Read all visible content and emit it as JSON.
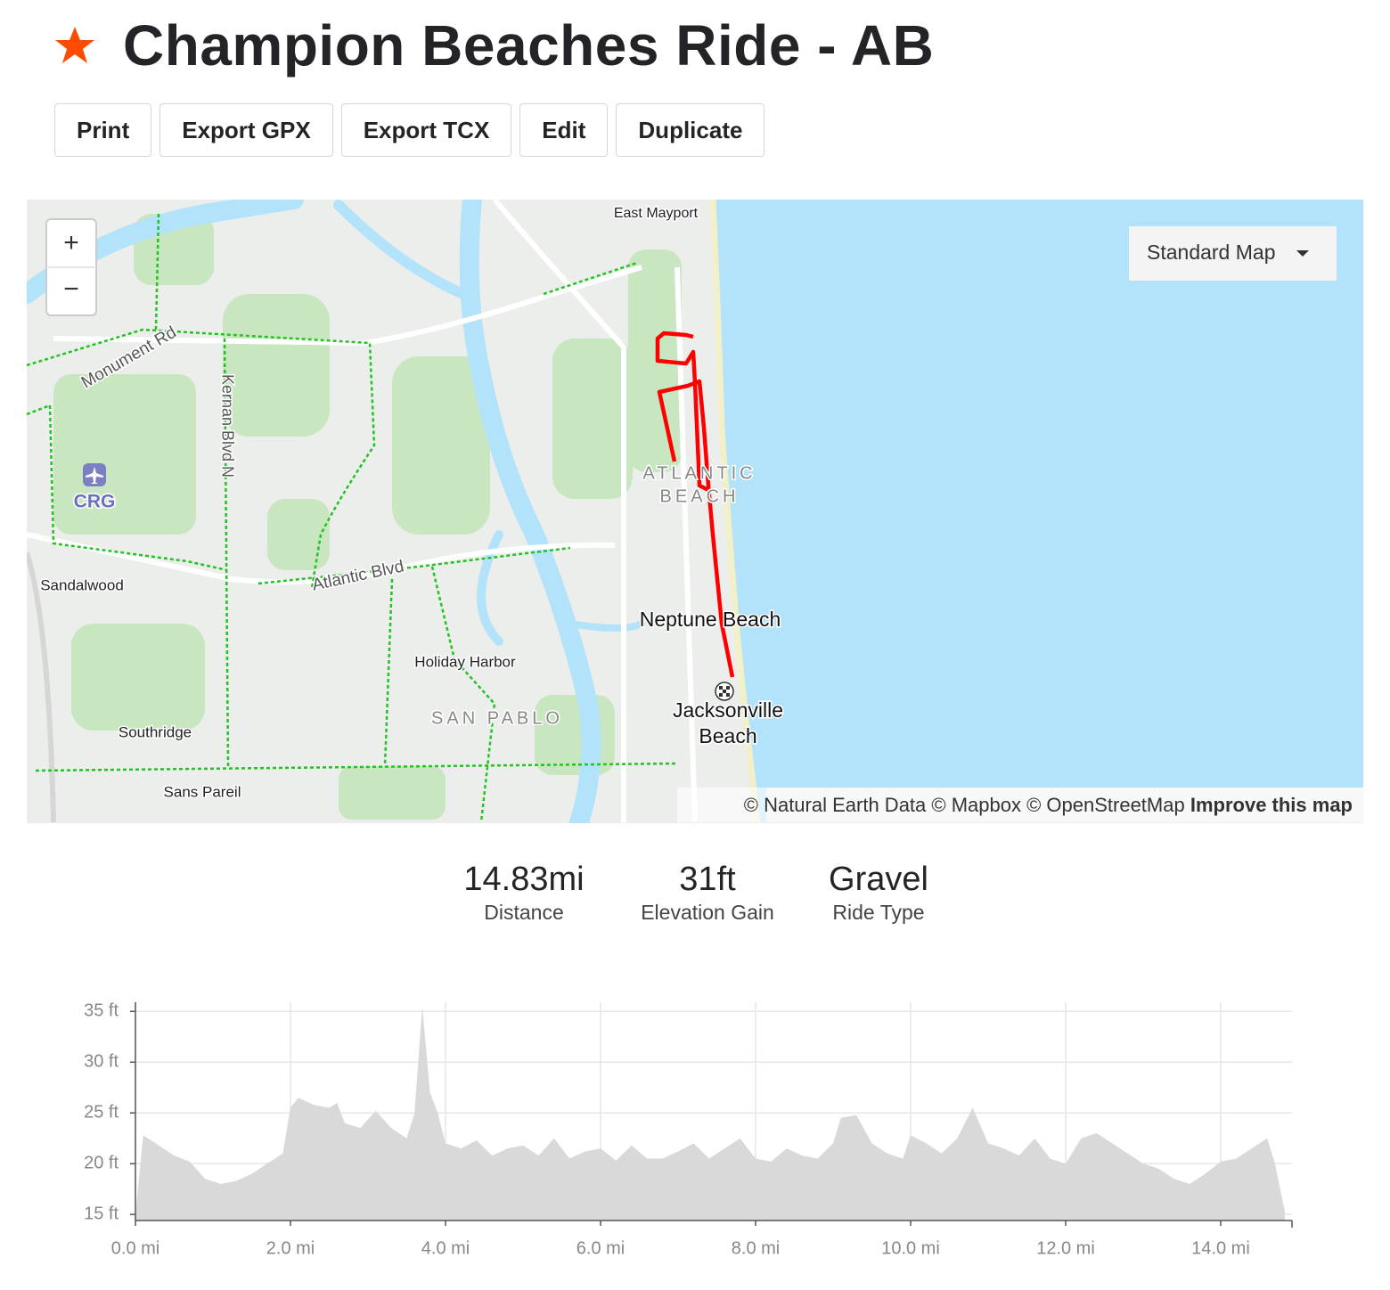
{
  "header": {
    "title": "Champion Beaches Ride - AB",
    "buttons": [
      "Print",
      "Export GPX",
      "Export TCX",
      "Edit",
      "Duplicate"
    ]
  },
  "map": {
    "zoom_in": "+",
    "zoom_out": "−",
    "style_label": "Standard Map",
    "labels": [
      "East Mayport",
      "Monument Rd",
      "Kernan Blvd N",
      "CRG",
      "ATLANTIC",
      "BEACH",
      "Atlantic Blvd",
      "Sandalwood",
      "Neptune Beach",
      "Holiday Harbor",
      "SAN PABLO",
      "Jacksonville",
      "Beach",
      "Southridge",
      "Sans Pareil"
    ],
    "attribution": "© Natural Earth Data © Mapbox © OpenStreetMap",
    "improve": "Improve this map"
  },
  "stats": [
    {
      "value": "14.83mi",
      "label": "Distance"
    },
    {
      "value": "31ft",
      "label": "Elevation Gain"
    },
    {
      "value": "Gravel",
      "label": "Ride Type"
    }
  ],
  "chart_data": {
    "type": "area",
    "color": "#d9d9d9",
    "grid": true,
    "x": [
      0.0,
      0.1,
      0.3,
      0.5,
      0.7,
      0.9,
      1.1,
      1.3,
      1.5,
      1.7,
      1.9,
      2.0,
      2.1,
      2.3,
      2.5,
      2.6,
      2.7,
      2.9,
      3.1,
      3.3,
      3.5,
      3.6,
      3.7,
      3.8,
      3.9,
      4.0,
      4.2,
      4.4,
      4.6,
      4.8,
      5.0,
      5.2,
      5.4,
      5.6,
      5.8,
      6.0,
      6.2,
      6.4,
      6.6,
      6.8,
      7.0,
      7.2,
      7.4,
      7.6,
      7.8,
      8.0,
      8.2,
      8.4,
      8.6,
      8.8,
      9.0,
      9.1,
      9.3,
      9.5,
      9.7,
      9.9,
      10.0,
      10.2,
      10.4,
      10.6,
      10.8,
      11.0,
      11.2,
      11.4,
      11.6,
      11.8,
      12.0,
      12.2,
      12.4,
      12.6,
      12.8,
      13.0,
      13.2,
      13.4,
      13.6,
      13.8,
      14.0,
      14.2,
      14.4,
      14.6,
      14.7,
      14.83
    ],
    "values": [
      15.0,
      22.8,
      21.8,
      20.8,
      20.2,
      18.5,
      18.0,
      18.3,
      19.0,
      20.0,
      21.0,
      25.5,
      26.5,
      25.8,
      25.5,
      26.0,
      24.0,
      23.5,
      25.2,
      23.5,
      22.5,
      25.0,
      35.5,
      27.0,
      25.0,
      22.0,
      21.5,
      22.3,
      20.8,
      21.5,
      21.8,
      20.8,
      22.5,
      20.5,
      21.2,
      21.5,
      20.3,
      21.8,
      20.5,
      20.5,
      21.2,
      22.0,
      20.5,
      21.5,
      22.5,
      20.5,
      20.2,
      21.5,
      20.8,
      20.5,
      22.0,
      24.5,
      24.8,
      22.0,
      21.0,
      20.5,
      22.8,
      22.0,
      21.0,
      22.5,
      25.5,
      22.0,
      21.5,
      20.8,
      22.5,
      20.5,
      20.0,
      22.5,
      23.0,
      22.0,
      21.0,
      20.0,
      19.5,
      18.5,
      18.0,
      19.0,
      20.2,
      20.5,
      21.5,
      22.5,
      20.0,
      15.2
    ],
    "xlim": [
      0,
      14.92
    ],
    "ylim": [
      14.4,
      35.9
    ],
    "xticks": [
      {
        "value": 0,
        "label": "0.0 mi"
      },
      {
        "value": 2,
        "label": "2.0 mi"
      },
      {
        "value": 4,
        "label": "4.0 mi"
      },
      {
        "value": 6,
        "label": "6.0 mi"
      },
      {
        "value": 8,
        "label": "8.0 mi"
      },
      {
        "value": 10,
        "label": "10.0 mi"
      },
      {
        "value": 12,
        "label": "12.0 mi"
      },
      {
        "value": 14,
        "label": "14.0 mi"
      }
    ],
    "yticks": [
      {
        "value": 15,
        "label": "15 ft"
      },
      {
        "value": 20,
        "label": "20 ft"
      },
      {
        "value": 25,
        "label": "25 ft"
      },
      {
        "value": 30,
        "label": "30 ft"
      },
      {
        "value": 35,
        "label": "35 ft"
      }
    ]
  }
}
